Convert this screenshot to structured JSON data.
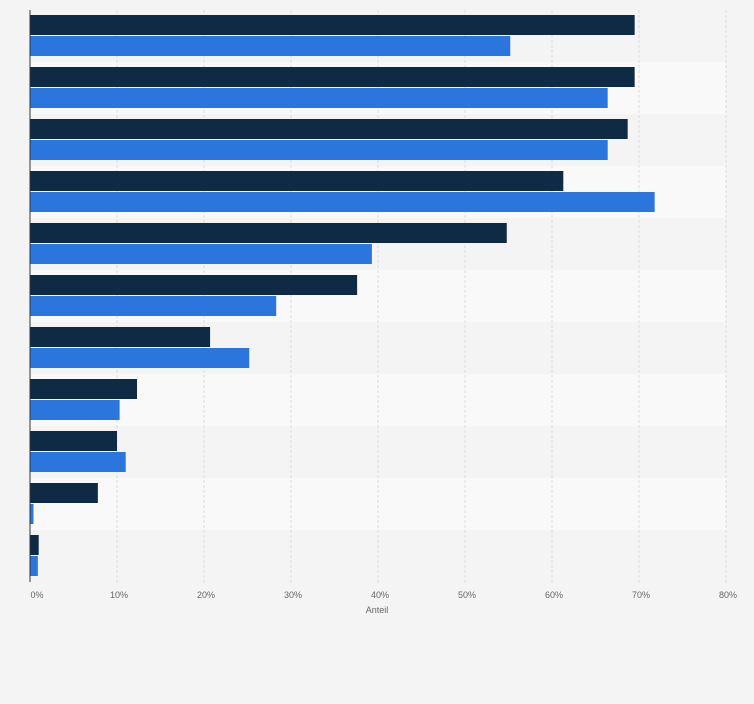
{
  "chart_data": {
    "type": "bar",
    "orientation": "horizontal",
    "categories": [
      "",
      "",
      "",
      "",
      "",
      "",
      "",
      "",
      "",
      "",
      ""
    ],
    "series": [
      {
        "color": "#0f2a45",
        "values": [
          69.5,
          69.5,
          68.7,
          61.3,
          54.8,
          37.6,
          20.7,
          12.3,
          10.0,
          7.8,
          1.0
        ]
      },
      {
        "color": "#2a76dd",
        "values": [
          55.2,
          66.4,
          66.4,
          71.8,
          39.3,
          28.3,
          25.2,
          10.3,
          11.0,
          0.4,
          0.9
        ]
      }
    ],
    "xlabel": "Anteil",
    "ticks": [
      "0%",
      "10%",
      "20%",
      "30%",
      "40%",
      "50%",
      "60%",
      "70%",
      "80%"
    ],
    "xlim": [
      0,
      80
    ],
    "grid": true,
    "legend": "none"
  },
  "colors": {
    "background": "#f4f4f4",
    "band_light": "#f9f9f9",
    "band_dark": "#f4f4f4",
    "gridline": "#dddddd",
    "axis": "#333333",
    "tick_text": "#666666"
  }
}
